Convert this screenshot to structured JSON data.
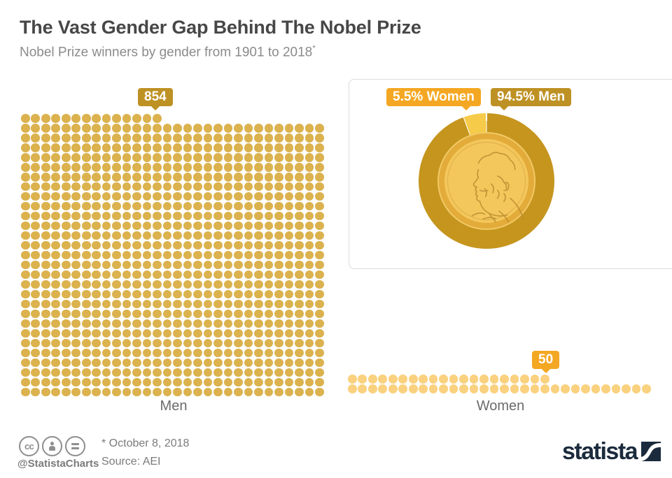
{
  "header": {
    "title": "The Vast Gender Gap Behind The Nobel Prize",
    "subtitle": "Nobel Prize winners by gender from 1901 to 2018",
    "note_marker": "*"
  },
  "chart_data": {
    "type": "pictogram",
    "title": "The Vast Gender Gap Behind The Nobel Prize",
    "subtitle": "Nobel Prize winners by gender from 1901 to 2018*",
    "unit": "Nobel Prize winners",
    "period": "1901-2018",
    "grid_columns": 30,
    "categories": [
      "Men",
      "Women"
    ],
    "series": [
      {
        "name": "Men",
        "count": 854,
        "percent": 94.5,
        "badge_label": "854",
        "donut_label": "94.5% Men",
        "donut_color": "#C5951E",
        "dot_color": "#DBB24E",
        "badge_color": "#BE9124"
      },
      {
        "name": "Women",
        "count": 50,
        "percent": 5.5,
        "badge_label": "50",
        "donut_label": "5.5% Women",
        "donut_color": "#F6CB49",
        "dot_color": "#FAD17E",
        "badge_color": "#F4A722"
      }
    ],
    "donut": {
      "legend_position": "top",
      "center_icon": "nobel-medal",
      "women_slice_degrees": 19.8,
      "men_slice_degrees": 340.2
    }
  },
  "footer": {
    "cc_label": "cc",
    "license_icons": [
      "cc-license-icon",
      "cc-attribution-icon",
      "cc-nd-icon"
    ],
    "handle": "@StatistaCharts",
    "date_note": "* October 8, 2018",
    "source": "Source: AEI",
    "logo_text": "statista"
  },
  "colors": {
    "title": "#474747",
    "subtitle": "#8B8B8B",
    "axis_label": "#6B6B6B",
    "footer_text": "#7B7B7B",
    "icon_gray": "#8E8E8E",
    "brand_navy": "#1B2B3D",
    "card_border": "#DBDBDB",
    "badge_text": "#FFFFFF",
    "medal_rim": "#E3AB39",
    "medal_rim_highlight": "#F1C965",
    "medal_face": "#F3C75B",
    "medal_inner_ring": "#DFAE49",
    "medal_engraving": "#BB8A30"
  }
}
